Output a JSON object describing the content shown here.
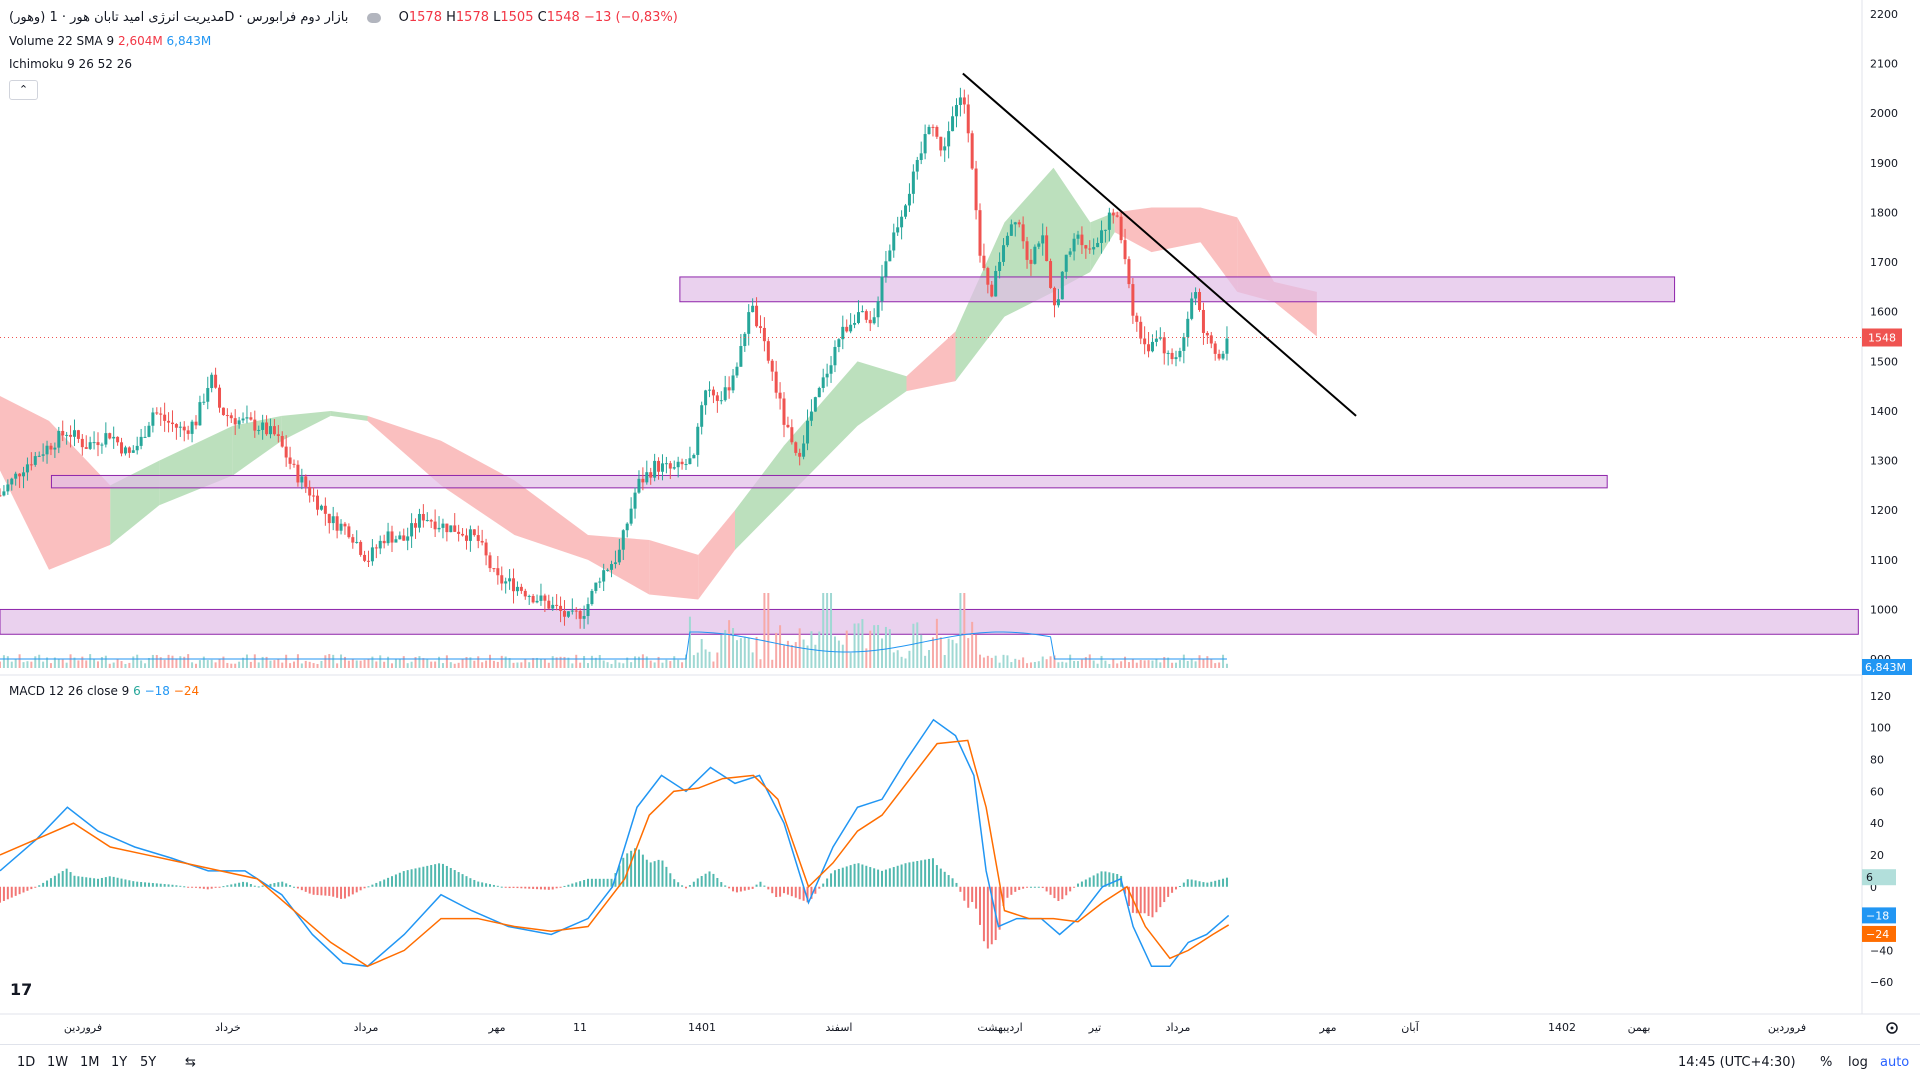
{
  "header": {
    "symbol": "(وهور) مدیریت انرژی امید تابان هور · 1D · بازار دوم فرابورس",
    "ohlc": {
      "o_label": "O",
      "o": "1578",
      "h_label": "H",
      "h": "1578",
      "l_label": "L",
      "l": "1505",
      "c_label": "C",
      "c": "1548",
      "change": "−13 (−0,83%)"
    },
    "volume_label": "Volume 22 SMA 9",
    "volume_v1": "2,604M",
    "volume_v2": "6,843M",
    "ichimoku_label": "Ichimoku 9 26 52 26",
    "collapse_glyph": "⌃"
  },
  "macd": {
    "label": "MACD 12 26 close 9",
    "v_hist": "6",
    "v_macd": "−18",
    "v_signal": "−24"
  },
  "colors": {
    "up": "#26a69a",
    "down": "#ef5350",
    "cloud_green": "#a5d6a7",
    "cloud_red": "#f8a9a9",
    "zone_fill": "#e1bee7",
    "zone_border": "#8e24aa",
    "macd_line": "#2196f3",
    "signal_line": "#ff6d00",
    "price_line": "#ef5350"
  },
  "price_axis": {
    "ticks": [
      2200,
      2100,
      2000,
      1900,
      1800,
      1700,
      1600,
      1500,
      1400,
      1300,
      1200,
      1100,
      1000,
      900
    ],
    "last_price": "1548",
    "last_volume": "6,843M"
  },
  "macd_axis": {
    "ticks": [
      120,
      100,
      80,
      60,
      40,
      20,
      0,
      -20,
      -40,
      -60
    ],
    "tick_labels": [
      "120",
      "100",
      "80",
      "60",
      "40",
      "20",
      "0",
      "−20",
      "−40",
      "−60"
    ],
    "hist_tag": "6",
    "macd_tag": "−18",
    "signal_tag": "−24"
  },
  "time_axis": {
    "labels": [
      "فروردین",
      "خرداد",
      "مرداد",
      "مهر",
      "11",
      "1401",
      "اسفند",
      "اردیبهشت",
      "تیر",
      "مرداد",
      "مهر",
      "آبان",
      "1402",
      "بهمن",
      "فروردین"
    ]
  },
  "toolbar": {
    "tf": [
      "1D",
      "1W",
      "1M",
      "1Y",
      "5Y"
    ],
    "time": "14:45 (UTC+4:30)",
    "percent": "%",
    "log": "log",
    "auto": "auto"
  },
  "chart_data": [
    {
      "type": "candlestick",
      "title": "(وهور) مدیریت انرژی امید تابان هور · 1D",
      "ylim": [
        880,
        2220
      ],
      "last_close": 1548,
      "price_path": [
        {
          "t": 0,
          "p": 1230
        },
        {
          "t": 20,
          "p": 1290
        },
        {
          "t": 40,
          "p": 1330
        },
        {
          "t": 55,
          "p": 1360
        },
        {
          "t": 70,
          "p": 1330
        },
        {
          "t": 90,
          "p": 1355
        },
        {
          "t": 105,
          "p": 1310
        },
        {
          "t": 115,
          "p": 1340
        },
        {
          "t": 125,
          "p": 1400
        },
        {
          "t": 135,
          "p": 1380
        },
        {
          "t": 150,
          "p": 1360
        },
        {
          "t": 160,
          "p": 1380
        },
        {
          "t": 172,
          "p": 1470
        },
        {
          "t": 180,
          "p": 1400
        },
        {
          "t": 195,
          "p": 1380
        },
        {
          "t": 210,
          "p": 1370
        },
        {
          "t": 225,
          "p": 1350
        },
        {
          "t": 240,
          "p": 1280
        },
        {
          "t": 255,
          "p": 1230
        },
        {
          "t": 270,
          "p": 1180
        },
        {
          "t": 285,
          "p": 1160
        },
        {
          "t": 300,
          "p": 1100
        },
        {
          "t": 315,
          "p": 1150
        },
        {
          "t": 330,
          "p": 1140
        },
        {
          "t": 345,
          "p": 1190
        },
        {
          "t": 360,
          "p": 1170
        },
        {
          "t": 375,
          "p": 1160
        },
        {
          "t": 390,
          "p": 1140
        },
        {
          "t": 405,
          "p": 1060
        },
        {
          "t": 420,
          "p": 1050
        },
        {
          "t": 440,
          "p": 1020
        },
        {
          "t": 455,
          "p": 1000
        },
        {
          "t": 465,
          "p": 980
        },
        {
          "t": 478,
          "p": 1000
        },
        {
          "t": 490,
          "p": 1070
        },
        {
          "t": 505,
          "p": 1110
        },
        {
          "t": 520,
          "p": 1250
        },
        {
          "t": 535,
          "p": 1290
        },
        {
          "t": 550,
          "p": 1280
        },
        {
          "t": 565,
          "p": 1300
        },
        {
          "t": 575,
          "p": 1450
        },
        {
          "t": 590,
          "p": 1420
        },
        {
          "t": 605,
          "p": 1520
        },
        {
          "t": 612,
          "p": 1620
        },
        {
          "t": 620,
          "p": 1560
        },
        {
          "t": 630,
          "p": 1480
        },
        {
          "t": 640,
          "p": 1380
        },
        {
          "t": 650,
          "p": 1300
        },
        {
          "t": 660,
          "p": 1380
        },
        {
          "t": 672,
          "p": 1460
        },
        {
          "t": 685,
          "p": 1550
        },
        {
          "t": 700,
          "p": 1600
        },
        {
          "t": 712,
          "p": 1560
        },
        {
          "t": 720,
          "p": 1680
        },
        {
          "t": 730,
          "p": 1760
        },
        {
          "t": 740,
          "p": 1830
        },
        {
          "t": 750,
          "p": 1900
        },
        {
          "t": 760,
          "p": 2000
        },
        {
          "t": 768,
          "p": 1920
        },
        {
          "t": 778,
          "p": 1990
        },
        {
          "t": 786,
          "p": 2040
        },
        {
          "t": 792,
          "p": 1950
        },
        {
          "t": 800,
          "p": 1700
        },
        {
          "t": 810,
          "p": 1640
        },
        {
          "t": 820,
          "p": 1750
        },
        {
          "t": 830,
          "p": 1800
        },
        {
          "t": 840,
          "p": 1700
        },
        {
          "t": 850,
          "p": 1760
        },
        {
          "t": 860,
          "p": 1600
        },
        {
          "t": 870,
          "p": 1700
        },
        {
          "t": 880,
          "p": 1760
        },
        {
          "t": 890,
          "p": 1720
        },
        {
          "t": 900,
          "p": 1770
        },
        {
          "t": 910,
          "p": 1800
        },
        {
          "t": 918,
          "p": 1720
        },
        {
          "t": 925,
          "p": 1600
        },
        {
          "t": 935,
          "p": 1520
        },
        {
          "t": 945,
          "p": 1560
        },
        {
          "t": 955,
          "p": 1500
        },
        {
          "t": 965,
          "p": 1530
        },
        {
          "t": 975,
          "p": 1650
        },
        {
          "t": 985,
          "p": 1540
        },
        {
          "t": 995,
          "p": 1500
        },
        {
          "t": 1003,
          "p": 1548
        }
      ],
      "ichimoku_cloud": [
        {
          "t": 0,
          "top": 1430,
          "bottom": 1280,
          "bull": false
        },
        {
          "t": 40,
          "top": 1380,
          "bottom": 1080,
          "bull": false
        },
        {
          "t": 90,
          "top": 1250,
          "bottom": 1130,
          "bull": true
        },
        {
          "t": 130,
          "top": 1300,
          "bottom": 1210,
          "bull": true
        },
        {
          "t": 190,
          "top": 1370,
          "bottom": 1270,
          "bull": true
        },
        {
          "t": 230,
          "top": 1390,
          "bottom": 1340,
          "bull": true
        },
        {
          "t": 270,
          "top": 1400,
          "bottom": 1390,
          "bull": true
        },
        {
          "t": 300,
          "top": 1390,
          "bottom": 1380,
          "bull": false
        },
        {
          "t": 360,
          "top": 1340,
          "bottom": 1250,
          "bull": false
        },
        {
          "t": 420,
          "top": 1260,
          "bottom": 1150,
          "bull": false
        },
        {
          "t": 480,
          "top": 1150,
          "bottom": 1100,
          "bull": false
        },
        {
          "t": 530,
          "top": 1140,
          "bottom": 1030,
          "bull": false
        },
        {
          "t": 570,
          "top": 1110,
          "bottom": 1020,
          "bull": false
        },
        {
          "t": 600,
          "top": 1200,
          "bottom": 1120,
          "bull": true
        },
        {
          "t": 640,
          "top": 1330,
          "bottom": 1220,
          "bull": true
        },
        {
          "t": 700,
          "top": 1500,
          "bottom": 1370,
          "bull": true
        },
        {
          "t": 740,
          "top": 1470,
          "bottom": 1440,
          "bull": false
        },
        {
          "t": 780,
          "top": 1560,
          "bottom": 1460,
          "bull": true
        },
        {
          "t": 820,
          "top": 1780,
          "bottom": 1590,
          "bull": true
        },
        {
          "t": 860,
          "top": 1890,
          "bottom": 1640,
          "bull": true
        },
        {
          "t": 890,
          "top": 1780,
          "bottom": 1680,
          "bull": true
        },
        {
          "t": 910,
          "top": 1800,
          "bottom": 1760,
          "bull": false
        },
        {
          "t": 940,
          "top": 1810,
          "bottom": 1720,
          "bull": false
        },
        {
          "t": 980,
          "top": 1810,
          "bottom": 1740,
          "bull": false
        },
        {
          "t": 1010,
          "top": 1790,
          "bottom": 1640,
          "bull": false
        },
        {
          "t": 1040,
          "top": 1660,
          "bottom": 1620,
          "bull": false
        },
        {
          "t": 1075,
          "top": 1640,
          "bottom": 1550,
          "bull": false
        }
      ],
      "zones": [
        {
          "from": 555,
          "to": 1367,
          "top": 1670,
          "bottom": 1620
        },
        {
          "from": 42,
          "to": 1312,
          "top": 1270,
          "bottom": 1245
        },
        {
          "from": 0,
          "to": 1517,
          "top": 1000,
          "bottom": 950
        }
      ],
      "trendline": [
        {
          "t": 786,
          "p": 2080
        },
        {
          "t": 1107,
          "p": 1390
        }
      ]
    },
    {
      "type": "bar",
      "title": "Volume 22 SMA 9",
      "note": "volume histogram with SMA overlay, last value 6,843M"
    },
    {
      "type": "line",
      "title": "MACD 12 26 close 9",
      "ylim": [
        -80,
        130
      ],
      "series": [
        {
          "name": "MACD",
          "points": [
            [
              0,
              10
            ],
            [
              30,
              30
            ],
            [
              55,
              50
            ],
            [
              80,
              35
            ],
            [
              110,
              25
            ],
            [
              140,
              18
            ],
            [
              170,
              10
            ],
            [
              200,
              10
            ],
            [
              230,
              -5
            ],
            [
              255,
              -30
            ],
            [
              280,
              -48
            ],
            [
              300,
              -50
            ],
            [
              330,
              -30
            ],
            [
              360,
              -5
            ],
            [
              385,
              -15
            ],
            [
              415,
              -25
            ],
            [
              450,
              -30
            ],
            [
              480,
              -20
            ],
            [
              500,
              0
            ],
            [
              520,
              50
            ],
            [
              540,
              70
            ],
            [
              560,
              60
            ],
            [
              580,
              75
            ],
            [
              600,
              65
            ],
            [
              620,
              70
            ],
            [
              640,
              40
            ],
            [
              660,
              -10
            ],
            [
              680,
              25
            ],
            [
              700,
              50
            ],
            [
              720,
              55
            ],
            [
              740,
              80
            ],
            [
              762,
              105
            ],
            [
              780,
              95
            ],
            [
              795,
              70
            ],
            [
              805,
              10
            ],
            [
              815,
              -25
            ],
            [
              830,
              -20
            ],
            [
              850,
              -20
            ],
            [
              865,
              -30
            ],
            [
              880,
              -20
            ],
            [
              900,
              0
            ],
            [
              915,
              5
            ],
            [
              925,
              -25
            ],
            [
              940,
              -50
            ],
            [
              955,
              -50
            ],
            [
              970,
              -35
            ],
            [
              985,
              -30
            ],
            [
              1003,
              -18
            ]
          ]
        },
        {
          "name": "Signal",
          "points": [
            [
              0,
              20
            ],
            [
              30,
              30
            ],
            [
              60,
              40
            ],
            [
              90,
              25
            ],
            [
              120,
              20
            ],
            [
              150,
              15
            ],
            [
              180,
              10
            ],
            [
              210,
              5
            ],
            [
              240,
              -15
            ],
            [
              270,
              -35
            ],
            [
              300,
              -50
            ],
            [
              330,
              -40
            ],
            [
              360,
              -20
            ],
            [
              390,
              -20
            ],
            [
              420,
              -25
            ],
            [
              450,
              -28
            ],
            [
              480,
              -25
            ],
            [
              510,
              5
            ],
            [
              530,
              45
            ],
            [
              550,
              60
            ],
            [
              570,
              62
            ],
            [
              590,
              68
            ],
            [
              615,
              70
            ],
            [
              635,
              55
            ],
            [
              660,
              0
            ],
            [
              680,
              15
            ],
            [
              700,
              35
            ],
            [
              720,
              45
            ],
            [
              745,
              70
            ],
            [
              765,
              90
            ],
            [
              790,
              92
            ],
            [
              805,
              50
            ],
            [
              820,
              -15
            ],
            [
              840,
              -20
            ],
            [
              860,
              -20
            ],
            [
              880,
              -22
            ],
            [
              900,
              -10
            ],
            [
              920,
              0
            ],
            [
              935,
              -25
            ],
            [
              955,
              -45
            ],
            [
              970,
              -40
            ],
            [
              990,
              -30
            ],
            [
              1003,
              -24
            ]
          ]
        }
      ]
    }
  ]
}
